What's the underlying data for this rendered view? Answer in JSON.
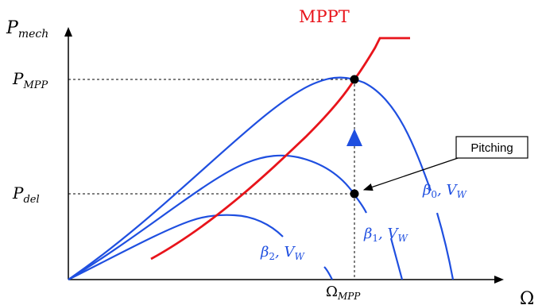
{
  "axes": {
    "y_label_main": "P",
    "y_label_sub": "mech",
    "x_label": "Ω"
  },
  "ticks": {
    "y_mpp_main": "P",
    "y_mpp_sub": "MPP",
    "y_del_main": "P",
    "y_del_sub": "del",
    "x_mpp_main": "Ω",
    "x_mpp_sub": "MPP"
  },
  "curves": {
    "mppt_label": "MPPT",
    "beta0_label": "β",
    "beta0_sub": "0",
    "beta0_suffix": ", V",
    "beta0_suffix_sub": "W",
    "beta1_label": "β",
    "beta1_sub": "1",
    "beta1_suffix": ", V",
    "beta1_suffix_sub": "W",
    "beta2_label": "β",
    "beta2_sub": "2",
    "beta2_suffix": ", V",
    "beta2_suffix_sub": "W"
  },
  "callout": {
    "label": "Pitching"
  },
  "colors": {
    "curve_blue": "#1f4fe0",
    "mppt_red": "#e8141b",
    "axis_black": "#000000"
  }
}
